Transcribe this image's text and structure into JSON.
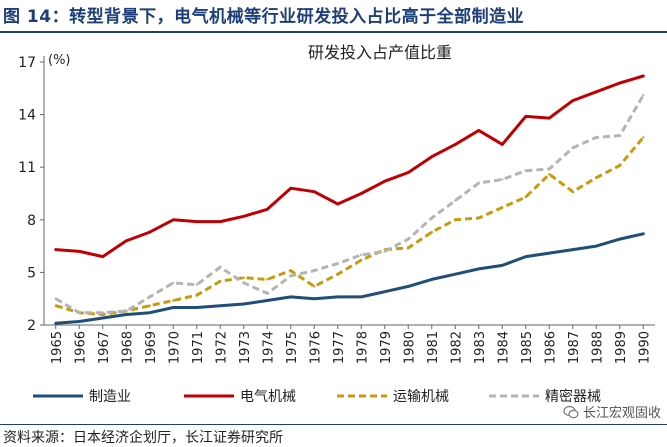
{
  "page": {
    "title": "图 14：转型背景下，电气机械等行业研发投入占比高于全部制造业",
    "source": "资料来源：日本经济企划厅，长江证券研究所",
    "watermark": "长江宏观固收"
  },
  "chart_data": {
    "type": "line",
    "title": "研发投入占产值比重",
    "unit": "(%)",
    "x": [
      "1965",
      "1966",
      "1967",
      "1968",
      "1969",
      "1970",
      "1971",
      "1972",
      "1973",
      "1974",
      "1975",
      "1976",
      "1977",
      "1978",
      "1979",
      "1980",
      "1981",
      "1982",
      "1983",
      "1984",
      "1985",
      "1986",
      "1987",
      "1988",
      "1989",
      "1990"
    ],
    "ylim": [
      2,
      17
    ],
    "yticks": [
      2,
      5,
      8,
      11,
      14,
      17
    ],
    "series": [
      {
        "name": "制造业",
        "color": "#1f4e79",
        "dash": false,
        "values": [
          2.1,
          2.2,
          2.4,
          2.6,
          2.7,
          3.0,
          3.0,
          3.1,
          3.2,
          3.4,
          3.6,
          3.5,
          3.6,
          3.6,
          3.9,
          4.2,
          4.6,
          4.9,
          5.2,
          5.4,
          5.9,
          6.1,
          6.3,
          6.5,
          6.9,
          7.2
        ]
      },
      {
        "name": "电气机械",
        "color": "#c00000",
        "dash": false,
        "values": [
          6.3,
          6.2,
          5.9,
          6.8,
          7.3,
          8.0,
          7.9,
          7.9,
          8.2,
          8.6,
          9.8,
          9.6,
          8.9,
          9.5,
          10.2,
          10.7,
          11.6,
          12.3,
          13.1,
          12.3,
          13.9,
          13.8,
          14.8,
          15.3,
          15.8,
          16.2
        ]
      },
      {
        "name": "运输机械",
        "color": "#c79b0b",
        "dash": true,
        "values": [
          3.1,
          2.7,
          2.6,
          2.8,
          3.1,
          3.4,
          3.7,
          4.5,
          4.7,
          4.6,
          5.1,
          4.2,
          4.9,
          5.7,
          6.3,
          6.4,
          7.3,
          8.0,
          8.1,
          8.7,
          9.3,
          10.6,
          9.6,
          10.4,
          11.1,
          12.7
        ]
      },
      {
        "name": "精密器械",
        "color": "#b4b4b4",
        "dash": true,
        "values": [
          3.5,
          2.7,
          2.7,
          2.8,
          3.6,
          4.4,
          4.3,
          5.3,
          4.4,
          3.8,
          4.8,
          5.1,
          5.5,
          6.0,
          6.2,
          6.9,
          8.1,
          9.1,
          10.1,
          10.3,
          10.8,
          10.9,
          12.1,
          12.7,
          12.8,
          15.1
        ]
      }
    ],
    "legend_position": "bottom"
  }
}
